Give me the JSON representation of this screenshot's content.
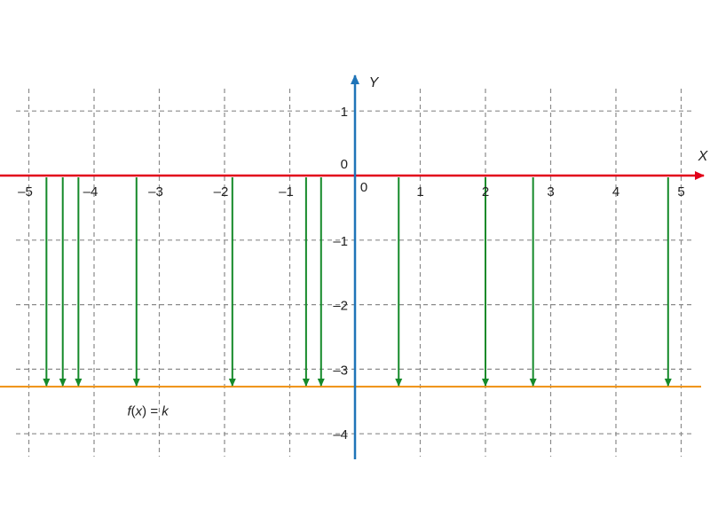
{
  "chart_data": {
    "type": "line",
    "title": "",
    "xlabel": "X",
    "ylabel": "Y",
    "xlim": [
      -5.2,
      5.3
    ],
    "ylim": [
      -4.4,
      1.5
    ],
    "grid": true,
    "origin_label": "0",
    "x_ticks": [
      {
        "value": -5,
        "label": "–5"
      },
      {
        "value": -4,
        "label": "–4"
      },
      {
        "value": -3,
        "label": "–3"
      },
      {
        "value": -2,
        "label": "–2"
      },
      {
        "value": -1,
        "label": "–1"
      },
      {
        "value": 1,
        "label": "1"
      },
      {
        "value": 2,
        "label": "2"
      },
      {
        "value": 3,
        "label": "3"
      },
      {
        "value": 4,
        "label": "4"
      },
      {
        "value": 5,
        "label": "5"
      }
    ],
    "y_ticks": [
      {
        "value": 1,
        "label": "1"
      },
      {
        "value": -1,
        "label": "–1"
      },
      {
        "value": -2,
        "label": "–2"
      },
      {
        "value": -3,
        "label": "–3"
      },
      {
        "value": -4,
        "label": "–4"
      }
    ],
    "function": {
      "label_parts": [
        "f",
        "(",
        "x",
        ")",
        " = ",
        "k"
      ],
      "k": -3.27,
      "label_at": {
        "x": -3.0,
        "y": -3.65
      }
    },
    "arrows_x": [
      -4.73,
      -4.48,
      -4.24,
      -3.35,
      -1.88,
      -0.75,
      -0.52,
      0.67,
      2.0,
      2.73,
      4.8
    ],
    "colors": {
      "x_axis": "#e2001a",
      "y_axis": "#1f74b8",
      "function_line": "#f0961e",
      "arrows": "#158a2a",
      "grid": "#8a8a8a"
    }
  }
}
